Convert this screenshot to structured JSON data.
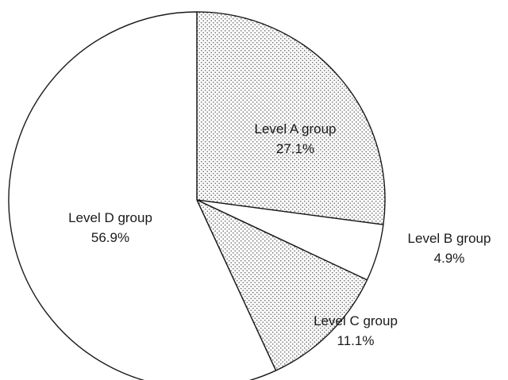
{
  "chart_data": {
    "type": "pie",
    "title": "",
    "start_angle_deg": 0,
    "direction": "clockwise",
    "slices": [
      {
        "label": "Level A group",
        "value": 27.1,
        "display": "27.1%",
        "fill": "dotted"
      },
      {
        "label": "Level B group",
        "value": 4.9,
        "display": "4.9%",
        "fill": "white"
      },
      {
        "label": "Level C group",
        "value": 11.1,
        "display": "11.1%",
        "fill": "dotted"
      },
      {
        "label": "Level D group",
        "value": 56.9,
        "display": "56.9%",
        "fill": "white"
      }
    ],
    "colors": {
      "outline": "#1a1a1a",
      "background": "#ffffff",
      "dot": "#7a7a7a"
    }
  }
}
